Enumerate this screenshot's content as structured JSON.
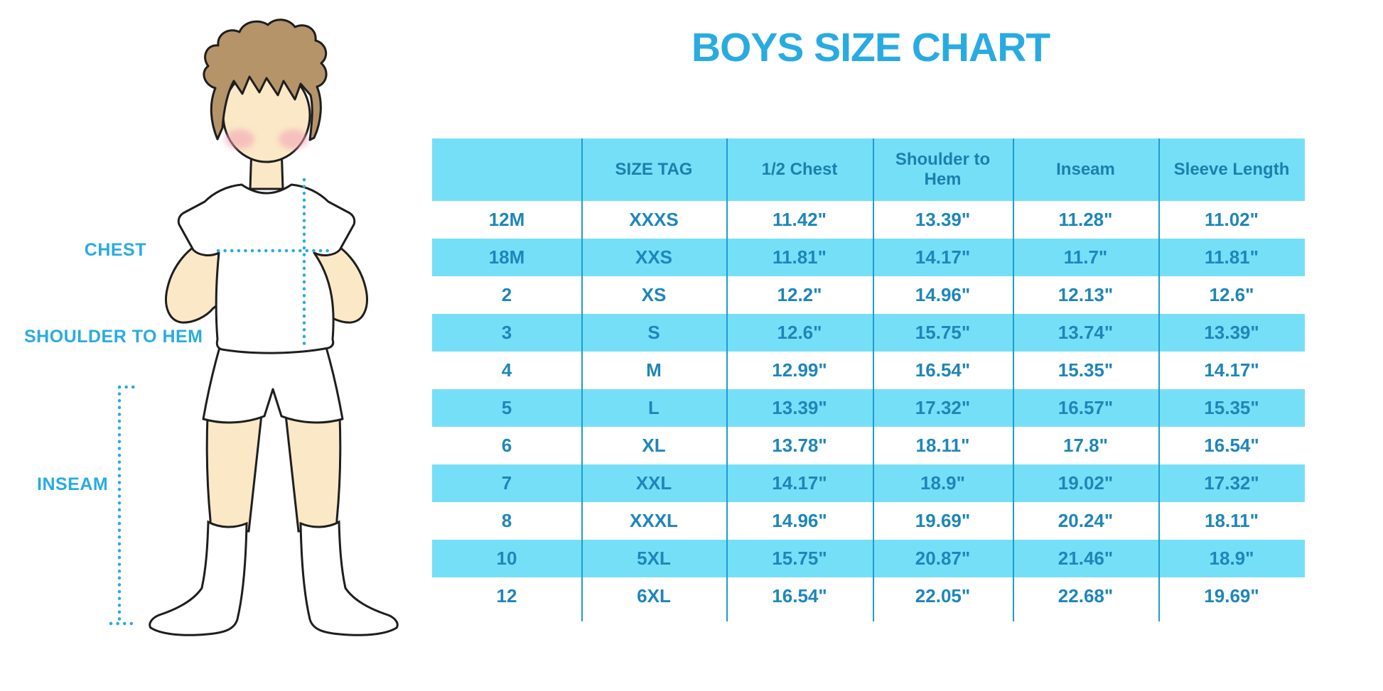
{
  "title": "BOYS SIZE CHART",
  "colors": {
    "accent_blue": "#29ABE2",
    "stripe_blue": "#76DFF8",
    "table_text_blue": "#1E86B8",
    "divider_blue": "#1F9CCE",
    "hair_brown": "#B5946A",
    "skin": "#FBE8C7",
    "blush_pink": "#F2A0B5"
  },
  "figure_labels": {
    "chest": "CHEST",
    "shoulder_to_hem": "SHOULDER TO HEM",
    "inseam": "INSEAM"
  },
  "chart_data": {
    "type": "table",
    "title": "BOYS SIZE CHART",
    "units": "inches",
    "columns": [
      "",
      "SIZE TAG",
      "1/2 Chest",
      "Shoulder to Hem",
      "Inseam",
      "Sleeve Length"
    ],
    "rows": [
      [
        "12M",
        "XXXS",
        "11.42\"",
        "13.39\"",
        "11.28\"",
        "11.02\""
      ],
      [
        "18M",
        "XXS",
        "11.81\"",
        "14.17\"",
        "11.7\"",
        "11.81\""
      ],
      [
        "2",
        "XS",
        "12.2\"",
        "14.96\"",
        "12.13\"",
        "12.6\""
      ],
      [
        "3",
        "S",
        "12.6\"",
        "15.75\"",
        "13.74\"",
        "13.39\""
      ],
      [
        "4",
        "M",
        "12.99\"",
        "16.54\"",
        "15.35\"",
        "14.17\""
      ],
      [
        "5",
        "L",
        "13.39\"",
        "17.32\"",
        "16.57\"",
        "15.35\""
      ],
      [
        "6",
        "XL",
        "13.78\"",
        "18.11\"",
        "17.8\"",
        "16.54\""
      ],
      [
        "7",
        "XXL",
        "14.17\"",
        "18.9\"",
        "19.02\"",
        "17.32\""
      ],
      [
        "8",
        "XXXL",
        "14.96\"",
        "19.69\"",
        "20.24\"",
        "18.11\""
      ],
      [
        "10",
        "5XL",
        "15.75\"",
        "20.87\"",
        "21.46\"",
        "18.9\""
      ],
      [
        "12",
        "6XL",
        "16.54\"",
        "22.05\"",
        "22.68\"",
        "19.69\""
      ]
    ]
  }
}
